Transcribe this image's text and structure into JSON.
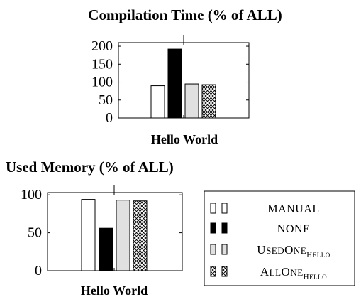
{
  "chart_data": [
    {
      "type": "bar",
      "title": "Compilation Time (% of ALL)",
      "categories": [
        "Hello World"
      ],
      "series": [
        {
          "name": "MANUAL",
          "values": [
            90
          ]
        },
        {
          "name": "NONE",
          "values": [
            192
          ]
        },
        {
          "name": "UsedOne_Hello",
          "values": [
            95
          ]
        },
        {
          "name": "AllOne_Hello",
          "values": [
            93
          ]
        }
      ],
      "yticks": [
        0,
        50,
        100,
        150,
        200
      ],
      "ylim": [
        0,
        210
      ],
      "grid": false
    },
    {
      "type": "bar",
      "title": "Used Memory (% of ALL)",
      "categories": [
        "Hello World"
      ],
      "series": [
        {
          "name": "MANUAL",
          "values": [
            94
          ]
        },
        {
          "name": "NONE",
          "values": [
            56
          ]
        },
        {
          "name": "UsedOne_Hello",
          "values": [
            93
          ]
        },
        {
          "name": "AllOne_Hello",
          "values": [
            92
          ]
        }
      ],
      "yticks": [
        0,
        50,
        100
      ],
      "ylim": [
        0,
        103
      ],
      "grid": false
    }
  ],
  "legend": {
    "placement": "bottom-right",
    "entries": [
      {
        "key": "manual",
        "text": "MANUAL",
        "sub": "",
        "style": "manual"
      },
      {
        "key": "none",
        "text": "NONE",
        "sub": "",
        "style": "none"
      },
      {
        "key": "usedone",
        "text": "UsedOne",
        "sub": "Hello",
        "style": "usedone"
      },
      {
        "key": "allone",
        "text": "AllOne",
        "sub": "Hello",
        "style": "allone"
      }
    ]
  },
  "styles": {
    "manual": {
      "fill": "#ffffff",
      "stroke": "#000000"
    },
    "none": {
      "fill": "#000000",
      "stroke": "#000000"
    },
    "usedone": {
      "fill": "#e0e0e0",
      "stroke": "#000000"
    },
    "allone": {
      "fill": "url(#crosshatch)",
      "stroke": "#000000"
    }
  }
}
